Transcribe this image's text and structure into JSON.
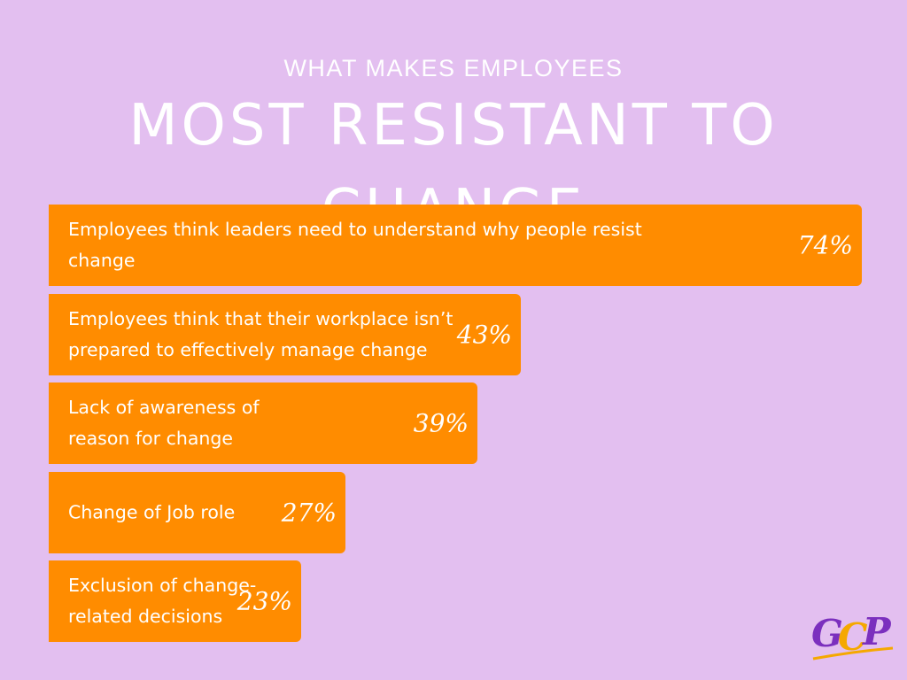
{
  "chart_data": {
    "type": "bar",
    "orientation": "horizontal",
    "subtitle": "WHAT MAKES EMPLOYEES",
    "title": "MOST RESISTANT TO CHANGE",
    "categories": [
      "Employees think leaders need to understand why people resist change",
      "Employees think that their workplace isn’t prepared to effectively manage change",
      "Lack of awareness of reason for change",
      "Change of Job role",
      "Exclusion of change-related decisions"
    ],
    "values": [
      74,
      43,
      39,
      27,
      23
    ],
    "value_labels": [
      "74%",
      "43%",
      "39%",
      "27%",
      "23%"
    ],
    "xlim": [
      0,
      100
    ],
    "grid": false,
    "legend": "none",
    "bar_color": "#ff8c00",
    "background_color": "#e3bff0"
  },
  "logo": {
    "text": "GCP",
    "colors": [
      "#7b2fbe",
      "#f5a800",
      "#7b2fbe"
    ],
    "underline_color": "#f5a800"
  }
}
